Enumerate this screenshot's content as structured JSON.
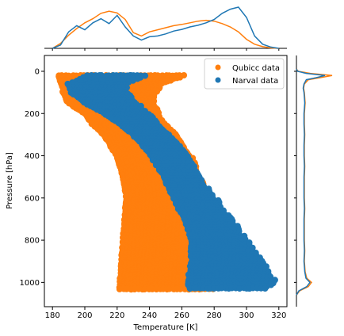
{
  "chart_data": {
    "type": "scatter",
    "xlabel": "Temperature [K]",
    "ylabel": "Pressure [hPa]",
    "xlim": [
      175,
      325
    ],
    "ylim": [
      1115,
      -75
    ],
    "y_inverted": true,
    "xticks": [
      180,
      200,
      220,
      240,
      260,
      280,
      300,
      320
    ],
    "yticks": [
      0,
      200,
      400,
      600,
      800,
      1000
    ],
    "legend": {
      "location": "upper right",
      "marker": "circle"
    },
    "series": [
      {
        "name": "Qubicc data",
        "color": "#ff7f0e",
        "band_profile": {
          "pressure": [
            20,
            60,
            100,
            150,
            200,
            250,
            300,
            400,
            500,
            600,
            700,
            800,
            900,
            1000,
            1035
          ],
          "t_min": [
            184,
            186,
            187,
            190,
            200,
            205,
            212,
            220,
            224,
            226,
            225,
            224,
            223,
            222,
            222
          ],
          "t_max": [
            262,
            248,
            244,
            242,
            246,
            250,
            256,
            266,
            272,
            276,
            278,
            279,
            280,
            281,
            280
          ]
        }
      },
      {
        "name": "Narval data",
        "color": "#1f77b4",
        "band_profile": {
          "pressure": [
            20,
            60,
            100,
            150,
            200,
            250,
            300,
            350,
            400,
            450,
            500,
            550,
            600,
            650,
            700,
            750,
            800,
            850,
            900,
            950,
            1000,
            1030
          ],
          "t_min": [
            202,
            190,
            192,
            200,
            212,
            222,
            230,
            236,
            241,
            245,
            249,
            252,
            255,
            258,
            262,
            264,
            266,
            266,
            266,
            265,
            264,
            265
          ],
          "t_max": [
            238,
            226,
            226,
            232,
            240,
            246,
            252,
            258,
            263,
            267,
            272,
            276,
            281,
            286,
            291,
            296,
            300,
            305,
            310,
            314,
            318,
            312
          ]
        }
      }
    ],
    "marginal_x": {
      "x": [
        180,
        185,
        190,
        195,
        200,
        205,
        210,
        215,
        220,
        225,
        230,
        235,
        240,
        245,
        250,
        255,
        260,
        265,
        270,
        275,
        280,
        285,
        290,
        295,
        300,
        305,
        310,
        315,
        320
      ],
      "qubicc": [
        0.0,
        0.12,
        0.32,
        0.48,
        0.62,
        0.72,
        0.85,
        0.9,
        0.86,
        0.7,
        0.38,
        0.3,
        0.4,
        0.45,
        0.5,
        0.55,
        0.58,
        0.62,
        0.66,
        0.68,
        0.66,
        0.6,
        0.52,
        0.4,
        0.22,
        0.1,
        0.04,
        0.01,
        0.0
      ],
      "narval": [
        0.0,
        0.08,
        0.4,
        0.55,
        0.45,
        0.62,
        0.72,
        0.6,
        0.8,
        0.52,
        0.3,
        0.2,
        0.28,
        0.3,
        0.35,
        0.42,
        0.46,
        0.52,
        0.56,
        0.62,
        0.7,
        0.85,
        0.95,
        1.0,
        0.75,
        0.3,
        0.1,
        0.03,
        0.0
      ]
    },
    "marginal_y": {
      "pressure": [
        -10,
        0,
        10,
        20,
        30,
        40,
        60,
        80,
        100,
        150,
        200,
        250,
        300,
        350,
        400,
        450,
        500,
        550,
        600,
        650,
        700,
        750,
        800,
        850,
        900,
        950,
        980,
        1000,
        1020,
        1040,
        1060
      ],
      "qubicc": [
        0.0,
        0.05,
        0.35,
        0.9,
        0.6,
        0.3,
        0.2,
        0.18,
        0.2,
        0.22,
        0.2,
        0.2,
        0.21,
        0.2,
        0.2,
        0.21,
        0.2,
        0.2,
        0.2,
        0.21,
        0.2,
        0.2,
        0.2,
        0.21,
        0.2,
        0.22,
        0.26,
        0.38,
        0.3,
        0.08,
        0.0
      ],
      "narval": [
        0.0,
        0.03,
        0.25,
        0.72,
        0.5,
        0.25,
        0.19,
        0.17,
        0.19,
        0.21,
        0.19,
        0.19,
        0.2,
        0.19,
        0.19,
        0.2,
        0.19,
        0.19,
        0.19,
        0.2,
        0.19,
        0.19,
        0.19,
        0.2,
        0.19,
        0.21,
        0.24,
        0.34,
        0.26,
        0.06,
        0.0
      ]
    }
  }
}
